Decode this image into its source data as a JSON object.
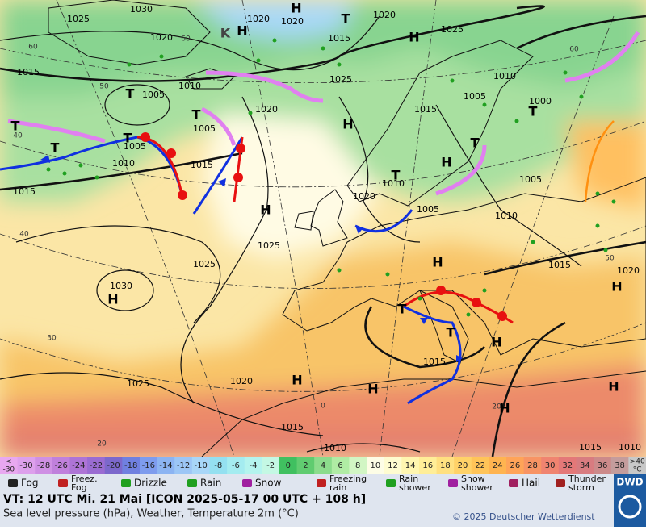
{
  "map": {
    "labels": [
      "1025",
      "1030",
      "H",
      "1020",
      "1020",
      "K",
      "H",
      "T",
      "1020",
      "1025",
      "H",
      "1020",
      "1015",
      "1015",
      "1025",
      "1010",
      "1010",
      "T",
      "1005",
      "1005",
      "1000",
      "1015",
      "1020",
      "T",
      "H",
      "T",
      "1005",
      "T",
      "T",
      "1005",
      "T",
      "T",
      "H",
      "1010",
      "1015",
      "1015",
      "T",
      "1010",
      "1005",
      "1020",
      "1005",
      "H",
      "1010",
      "1025",
      "1025",
      "H",
      "1015",
      "1020",
      "H",
      "1030",
      "H",
      "T",
      "T",
      "1015",
      "H",
      "H",
      "1020",
      "1025",
      "H",
      "H",
      "1015",
      "H",
      "1010",
      "1015",
      "1010"
    ],
    "grid_labels": [
      "60",
      "60",
      "60",
      "50",
      "40",
      "40",
      "30",
      "20",
      "0",
      "20",
      "50"
    ]
  },
  "color_scale": {
    "below": {
      "lines": [
        "<",
        "-30"
      ],
      "color": "#e8a8f0"
    },
    "steps": [
      {
        "label": "-30",
        "color": "#dda0ec"
      },
      {
        "label": "-28",
        "color": "#cf90e4"
      },
      {
        "label": "-26",
        "color": "#c080dc"
      },
      {
        "label": "-24",
        "color": "#ae74d6"
      },
      {
        "label": "-22",
        "color": "#9a6cd2"
      },
      {
        "label": "-20",
        "color": "#7c68cc"
      },
      {
        "label": "-18",
        "color": "#7080e0"
      },
      {
        "label": "-16",
        "color": "#7e9cee"
      },
      {
        "label": "-14",
        "color": "#8cb4f2"
      },
      {
        "label": "-12",
        "color": "#9cc6f6"
      },
      {
        "label": "-10",
        "color": "#a8d6f8"
      },
      {
        "label": "-8",
        "color": "#94e0f0"
      },
      {
        "label": "-6",
        "color": "#a4ecf0"
      },
      {
        "label": "-4",
        "color": "#b4f4ee"
      },
      {
        "label": "-2",
        "color": "#c4f8e4"
      },
      {
        "label": "0",
        "color": "#40c060"
      },
      {
        "label": "2",
        "color": "#60cc70"
      },
      {
        "label": "4",
        "color": "#8cdc8c"
      },
      {
        "label": "6",
        "color": "#b0eca4"
      },
      {
        "label": "8",
        "color": "#d2f6c4"
      },
      {
        "label": "10",
        "color": "#fdfde6"
      },
      {
        "label": "12",
        "color": "#fefcd0"
      },
      {
        "label": "14",
        "color": "#fff6b0"
      },
      {
        "label": "16",
        "color": "#ffee98"
      },
      {
        "label": "18",
        "color": "#ffe080"
      },
      {
        "label": "20",
        "color": "#ffd268"
      },
      {
        "label": "22",
        "color": "#ffc458"
      },
      {
        "label": "24",
        "color": "#ffb450"
      },
      {
        "label": "26",
        "color": "#ffa458"
      },
      {
        "label": "28",
        "color": "#f89464"
      },
      {
        "label": "30",
        "color": "#f08470"
      },
      {
        "label": "32",
        "color": "#e47878"
      },
      {
        "label": "34",
        "color": "#d87c80"
      },
      {
        "label": "36",
        "color": "#cc8a8a"
      },
      {
        "label": "38",
        "color": "#c49c9c"
      }
    ],
    "above": {
      "lines": [
        ">40",
        "°C"
      ],
      "color": "#c8c8c8"
    }
  },
  "legend": [
    {
      "label": [
        "Fog"
      ]
    },
    {
      "label": [
        "Freez.",
        "Fog"
      ]
    },
    {
      "label": [
        "Drizzle"
      ]
    },
    {
      "label": [
        "Rain"
      ]
    },
    {
      "label": [
        "Snow"
      ]
    },
    {
      "label": [
        "Freezing",
        "rain"
      ]
    },
    {
      "label": [
        "Rain",
        "shower"
      ]
    },
    {
      "label": [
        "Snow",
        "shower"
      ]
    },
    {
      "label": [
        "Hail"
      ]
    },
    {
      "label": [
        "Thunder",
        "storm"
      ]
    }
  ],
  "footer": {
    "valid_time": "VT: 12 UTC Mi.  21 Mai [ICON 2025-05-17  00 UTC + 108 h]",
    "description": "Sea level pressure (hPa), Weather, Temperature 2m (°C)",
    "copyright": "© 2025 Deutscher Wetterdienst",
    "logo": "DWD"
  }
}
